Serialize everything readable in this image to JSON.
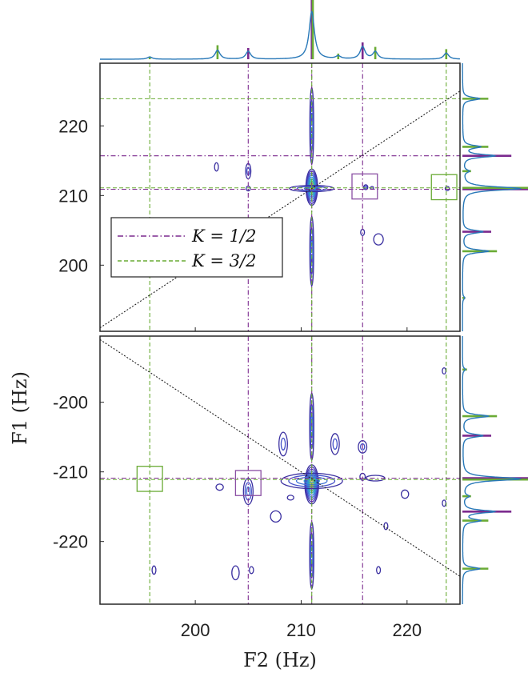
{
  "chart_data": {
    "type": "contour",
    "xlabel": "F2 (Hz)",
    "ylabel": "F1 (Hz)",
    "x_ticks": [
      "200",
      "210",
      "220"
    ],
    "xlim": [
      191,
      225
    ],
    "colors": {
      "k_half": "#7b2a8e",
      "k_three_half": "#6aab35",
      "spectrum": "#2878b8",
      "contour_low": "#3a2fa0",
      "contour_mid": "#2aa9b8",
      "contour_high": "#f2d418",
      "box_k_half": "#8a4fa3",
      "box_k_three_half": "#6aab35",
      "diagonal": "#222222"
    },
    "legend": {
      "placement": "middle-left of upper panel",
      "entries": [
        {
          "label": "K = 1/2",
          "color": "#7b2a8e",
          "style": "dash-dot"
        },
        {
          "label": "K = 3/2",
          "color": "#6aab35",
          "style": "dashed"
        }
      ]
    },
    "upper_panel": {
      "y_ticks": [
        "200",
        "210",
        "220"
      ],
      "ylim": [
        190.5,
        229
      ],
      "diagonal": "y = x"
    },
    "lower_panel": {
      "y_ticks": [
        "-200",
        "-210",
        "-220"
      ],
      "ylim": [
        -229,
        -190.5
      ],
      "diagonal": "y = -x"
    },
    "k_half_lines_f2": [
      205,
      211,
      215.8
    ],
    "k_three_half_lines_f2": [
      195.7,
      211,
      223.7
    ],
    "k_half_lines_f1_upper": [
      215.7,
      210.9
    ],
    "k_three_half_lines_f1_upper": [
      223.9,
      211.1
    ],
    "k_half_lines_f1_lower": [
      -210.9
    ],
    "k_three_half_lines_f1_lower": [
      -211.1
    ],
    "stick_spectrum_f2": [
      {
        "f": 195.7,
        "h": 0.05,
        "k": "3/2"
      },
      {
        "f": 202.1,
        "h": 0.25,
        "k": "3/2"
      },
      {
        "f": 205.0,
        "h": 0.2,
        "k": "1/2"
      },
      {
        "f": 211.0,
        "h": 1.0,
        "k": "1/2"
      },
      {
        "f": 211.1,
        "h": 1.0,
        "k": "3/2"
      },
      {
        "f": 213.5,
        "h": 0.1,
        "k": "3/2"
      },
      {
        "f": 215.8,
        "h": 0.3,
        "k": "1/2"
      },
      {
        "f": 217.0,
        "h": 0.22,
        "k": "3/2"
      },
      {
        "f": 223.7,
        "h": 0.18,
        "k": "3/2"
      }
    ],
    "lineshape_f2": [
      {
        "f": 195.7,
        "h": 0.04,
        "w": 0.28
      },
      {
        "f": 202.1,
        "h": 0.16,
        "w": 0.28
      },
      {
        "f": 205.0,
        "h": 0.14,
        "w": 0.28
      },
      {
        "f": 211.0,
        "h": 0.85,
        "w": 0.3
      },
      {
        "f": 213.5,
        "h": 0.05,
        "w": 0.28
      },
      {
        "f": 215.8,
        "h": 0.22,
        "w": 0.28
      },
      {
        "f": 217.0,
        "h": 0.13,
        "w": 0.28
      },
      {
        "f": 223.7,
        "h": 0.11,
        "w": 0.28
      }
    ],
    "stick_spectrum_f1_upper": [
      {
        "f": 195.3,
        "h": 0.05,
        "k": "3/2"
      },
      {
        "f": 202.0,
        "h": 0.6,
        "k": "3/2"
      },
      {
        "f": 204.8,
        "h": 0.5,
        "k": "1/2"
      },
      {
        "f": 210.9,
        "h": 1.0,
        "k": "1/2"
      },
      {
        "f": 211.1,
        "h": 1.0,
        "k": "3/2"
      },
      {
        "f": 213.5,
        "h": 0.15,
        "k": "3/2"
      },
      {
        "f": 215.7,
        "h": 0.85,
        "k": "1/2"
      },
      {
        "f": 217.0,
        "h": 0.45,
        "k": "3/2"
      },
      {
        "f": 223.9,
        "h": 0.45,
        "k": "3/2"
      }
    ],
    "lineshape_f1_upper": [
      {
        "f": 195.3,
        "h": 0.04,
        "w": 0.25
      },
      {
        "f": 202.0,
        "h": 0.45,
        "w": 0.25
      },
      {
        "f": 204.8,
        "h": 0.35,
        "w": 0.25
      },
      {
        "f": 211.0,
        "h": 1.0,
        "w": 0.3
      },
      {
        "f": 213.5,
        "h": 0.1,
        "w": 0.25
      },
      {
        "f": 215.7,
        "h": 0.55,
        "w": 0.25
      },
      {
        "f": 217.0,
        "h": 0.3,
        "w": 0.25
      },
      {
        "f": 223.9,
        "h": 0.3,
        "w": 0.25
      }
    ],
    "stick_spectrum_f1_lower": [
      {
        "f": -195.3,
        "h": 0.08,
        "k": "3/2"
      },
      {
        "f": -202.0,
        "h": 0.6,
        "k": "3/2"
      },
      {
        "f": -204.8,
        "h": 0.5,
        "k": "1/2"
      },
      {
        "f": -210.9,
        "h": 1.0,
        "k": "1/2"
      },
      {
        "f": -211.1,
        "h": 1.0,
        "k": "3/2"
      },
      {
        "f": -213.5,
        "h": 0.15,
        "k": "3/2"
      },
      {
        "f": -215.7,
        "h": 0.85,
        "k": "1/2"
      },
      {
        "f": -217.0,
        "h": 0.45,
        "k": "3/2"
      },
      {
        "f": -223.9,
        "h": 0.45,
        "k": "3/2"
      }
    ],
    "lineshape_f1_lower": [
      {
        "f": -195.3,
        "h": 0.05,
        "w": 0.25
      },
      {
        "f": -202.0,
        "h": 0.45,
        "w": 0.25
      },
      {
        "f": -204.8,
        "h": 0.35,
        "w": 0.25
      },
      {
        "f": -211.0,
        "h": 1.0,
        "w": 0.3
      },
      {
        "f": -213.5,
        "h": 0.1,
        "w": 0.25
      },
      {
        "f": -215.7,
        "h": 0.55,
        "w": 0.25
      },
      {
        "f": -217.0,
        "h": 0.3,
        "w": 0.25
      },
      {
        "f": -223.9,
        "h": 0.3,
        "w": 0.25
      }
    ],
    "peaks_upper": [
      {
        "x": 211.0,
        "y": 211.2,
        "sx": 0.55,
        "sy": 2.6,
        "levels": 9,
        "label": "main diagonal"
      },
      {
        "x": 211.0,
        "y": 220.0,
        "sx": 0.18,
        "sy": 5.5,
        "levels": 3,
        "label": "ridge"
      },
      {
        "x": 211.0,
        "y": 202.0,
        "sx": 0.18,
        "sy": 5.0,
        "levels": 3,
        "label": "ridge"
      },
      {
        "x": 211.0,
        "y": 211.0,
        "sx": 2.1,
        "sy": 0.45,
        "levels": 3,
        "label": "cross ridge"
      },
      {
        "x": 202.0,
        "y": 214.1,
        "sx": 0.18,
        "sy": 0.6,
        "levels": 1,
        "label": "cross"
      },
      {
        "x": 205.0,
        "y": 213.5,
        "sx": 0.25,
        "sy": 1.1,
        "levels": 2,
        "label": "cross"
      },
      {
        "x": 205.0,
        "y": 211.0,
        "sx": 0.2,
        "sy": 0.35,
        "levels": 1,
        "label": "cross"
      },
      {
        "x": 216.1,
        "y": 211.2,
        "sx": 0.2,
        "sy": 0.35,
        "levels": 2,
        "label": "cross"
      },
      {
        "x": 216.7,
        "y": 211.1,
        "sx": 0.15,
        "sy": 0.2,
        "levels": 1,
        "label": "cross"
      },
      {
        "x": 217.3,
        "y": 203.7,
        "sx": 0.45,
        "sy": 0.8,
        "levels": 1,
        "label": "cross"
      },
      {
        "x": 215.8,
        "y": 204.7,
        "sx": 0.18,
        "sy": 0.45,
        "levels": 1,
        "label": "cross"
      },
      {
        "x": 223.8,
        "y": 211.0,
        "sx": 0.2,
        "sy": 0.3,
        "levels": 1,
        "label": "cross"
      }
    ],
    "peaks_lower": [
      {
        "x": 211.0,
        "y": -211.8,
        "sx": 0.65,
        "sy": 2.8,
        "levels": 9,
        "label": "main anti-diagonal"
      },
      {
        "x": 211.0,
        "y": -203.5,
        "sx": 0.2,
        "sy": 4.8,
        "levels": 3,
        "label": "ridge"
      },
      {
        "x": 211.0,
        "y": -222.0,
        "sx": 0.2,
        "sy": 4.8,
        "levels": 3,
        "label": "ridge"
      },
      {
        "x": 211.0,
        "y": -211.3,
        "sx": 2.9,
        "sy": 1.1,
        "levels": 4,
        "label": "cross ridge"
      },
      {
        "x": 208.3,
        "y": -206.0,
        "sx": 0.4,
        "sy": 1.7,
        "levels": 2,
        "label": "cross"
      },
      {
        "x": 213.2,
        "y": -206.0,
        "sx": 0.4,
        "sy": 1.5,
        "levels": 2,
        "label": "cross"
      },
      {
        "x": 215.8,
        "y": -206.4,
        "sx": 0.4,
        "sy": 0.9,
        "levels": 2,
        "label": "cross"
      },
      {
        "x": 205.0,
        "y": -212.8,
        "sx": 0.45,
        "sy": 1.9,
        "levels": 3,
        "label": "cross"
      },
      {
        "x": 207.6,
        "y": -216.4,
        "sx": 0.5,
        "sy": 0.8,
        "levels": 1,
        "label": "cross"
      },
      {
        "x": 217.0,
        "y": -210.9,
        "sx": 0.9,
        "sy": 0.4,
        "levels": 1,
        "label": "cross"
      },
      {
        "x": 219.8,
        "y": -213.2,
        "sx": 0.35,
        "sy": 0.6,
        "levels": 1,
        "label": "cross"
      },
      {
        "x": 202.3,
        "y": -212.2,
        "sx": 0.35,
        "sy": 0.45,
        "levels": 1,
        "label": "cross"
      },
      {
        "x": 209.0,
        "y": -213.7,
        "sx": 0.3,
        "sy": 0.35,
        "levels": 1,
        "label": "cross"
      },
      {
        "x": 218.0,
        "y": -217.8,
        "sx": 0.18,
        "sy": 0.5,
        "levels": 1,
        "label": "cross"
      },
      {
        "x": 223.5,
        "y": -214.5,
        "sx": 0.17,
        "sy": 0.45,
        "levels": 1,
        "label": "cross"
      },
      {
        "x": 223.5,
        "y": -195.5,
        "sx": 0.17,
        "sy": 0.45,
        "levels": 1,
        "label": "cross"
      },
      {
        "x": 196.1,
        "y": -224.1,
        "sx": 0.18,
        "sy": 0.6,
        "levels": 1,
        "label": "cross"
      },
      {
        "x": 205.3,
        "y": -224.1,
        "sx": 0.2,
        "sy": 0.5,
        "levels": 1,
        "label": "cross"
      },
      {
        "x": 203.8,
        "y": -224.5,
        "sx": 0.35,
        "sy": 1.0,
        "levels": 1,
        "label": "cross"
      },
      {
        "x": 217.3,
        "y": -224.1,
        "sx": 0.18,
        "sy": 0.5,
        "levels": 1,
        "label": "cross"
      },
      {
        "x": 215.8,
        "y": -210.7,
        "sx": 0.25,
        "sy": 0.5,
        "levels": 1,
        "label": "cross"
      }
    ],
    "boxes_upper": [
      {
        "x": 216.0,
        "y": 211.3,
        "w": 2.4,
        "h": 3.6,
        "k": "1/2"
      },
      {
        "x": 223.5,
        "y": 211.2,
        "w": 2.4,
        "h": 3.6,
        "k": "3/2"
      }
    ],
    "boxes_lower": [
      {
        "x": 195.7,
        "y": -211.0,
        "w": 2.4,
        "h": 3.6,
        "k": "3/2"
      },
      {
        "x": 205.0,
        "y": -211.6,
        "w": 2.4,
        "h": 3.6,
        "k": "1/2"
      }
    ]
  }
}
